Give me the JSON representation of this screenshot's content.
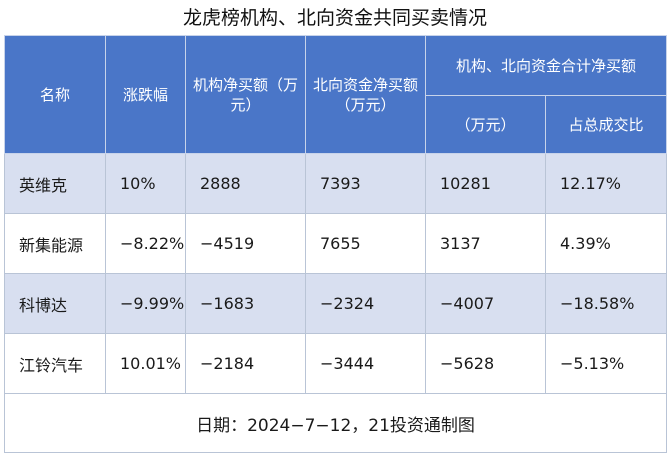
{
  "title": "龙虎榜机构、北向资金共同买卖情况",
  "headers": {
    "name": "名称",
    "change": "涨跌幅",
    "inst_net": "机构净买额（万元）",
    "north_net": "北向资金净买额（万元）",
    "combined_group": "机构、北向资金合计净买额",
    "combined_unit": "（万元）",
    "ratio": "占总成交比"
  },
  "rows": [
    {
      "name": "英维克",
      "change": "10%",
      "inst_net": "2888",
      "north_net": "7393",
      "combined": "10281",
      "ratio": "12.17%"
    },
    {
      "name": "新集能源",
      "change": "−8.22%",
      "inst_net": "−4519",
      "north_net": "7655",
      "combined": "3137",
      "ratio": "4.39%"
    },
    {
      "name": "科博达",
      "change": "−9.99%",
      "inst_net": "−1683",
      "north_net": "−2324",
      "combined": "−4007",
      "ratio": "−18.58%"
    },
    {
      "name": "江铃汽车",
      "change": "10.01%",
      "inst_net": "−2184",
      "north_net": "−3444",
      "combined": "−5628",
      "ratio": "−5.13%"
    }
  ],
  "footer": "日期：2024−7−12，21投资通制图"
}
